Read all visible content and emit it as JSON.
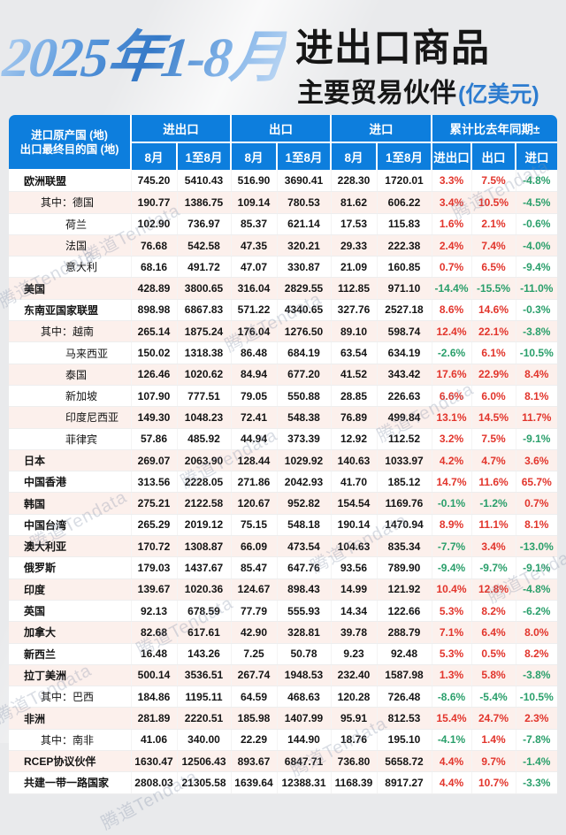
{
  "title": {
    "period": "2025年1-8月",
    "main": "进出口商品",
    "sub": "主要贸易伙伴",
    "unit": "(亿美元)"
  },
  "watermark_text": "腾道Tendata",
  "colors": {
    "header_bg": "#0d7edd",
    "increase_red": "#e2352c",
    "decrease_green": "#2a9f6b",
    "title_blue": "#3579c7",
    "row_alt_bg": "#fcf0ec"
  },
  "table": {
    "label_header_line1": "进口原产国 (地)",
    "label_header_line2": "出口最终目的国 (地)",
    "groups": [
      "进出口",
      "出口",
      "进口",
      "累计比去年同期±"
    ],
    "subheaders": [
      "8月",
      "1至8月",
      "8月",
      "1至8月",
      "8月",
      "1至8月",
      "进出口",
      "出口",
      "进口"
    ],
    "rows": [
      {
        "label": "欧洲联盟",
        "indent": 0,
        "values": [
          "745.20",
          "5410.43",
          "516.90",
          "3690.41",
          "228.30",
          "1720.01"
        ],
        "pcts": [
          "3.3%",
          "7.5%",
          "-4.8%"
        ]
      },
      {
        "label": "其中：德国",
        "indent": 1,
        "values": [
          "190.77",
          "1386.75",
          "109.14",
          "780.53",
          "81.62",
          "606.22"
        ],
        "pcts": [
          "3.4%",
          "10.5%",
          "-4.5%"
        ]
      },
      {
        "label": "荷兰",
        "indent": 2,
        "values": [
          "102.90",
          "736.97",
          "85.37",
          "621.14",
          "17.53",
          "115.83"
        ],
        "pcts": [
          "1.6%",
          "2.1%",
          "-0.6%"
        ]
      },
      {
        "label": "法国",
        "indent": 2,
        "values": [
          "76.68",
          "542.58",
          "47.35",
          "320.21",
          "29.33",
          "222.38"
        ],
        "pcts": [
          "2.4%",
          "7.4%",
          "-4.0%"
        ]
      },
      {
        "label": "意大利",
        "indent": 2,
        "values": [
          "68.16",
          "491.72",
          "47.07",
          "330.87",
          "21.09",
          "160.85"
        ],
        "pcts": [
          "0.7%",
          "6.5%",
          "-9.4%"
        ]
      },
      {
        "label": "美国",
        "indent": 0,
        "values": [
          "428.89",
          "3800.65",
          "316.04",
          "2829.55",
          "112.85",
          "971.10"
        ],
        "pcts": [
          "-14.4%",
          "-15.5%",
          "-11.0%"
        ]
      },
      {
        "label": "东南亚国家联盟",
        "indent": 0,
        "values": [
          "898.98",
          "6867.83",
          "571.22",
          "4340.65",
          "327.76",
          "2527.18"
        ],
        "pcts": [
          "8.6%",
          "14.6%",
          "-0.3%"
        ]
      },
      {
        "label": "其中：越南",
        "indent": 1,
        "values": [
          "265.14",
          "1875.24",
          "176.04",
          "1276.50",
          "89.10",
          "598.74"
        ],
        "pcts": [
          "12.4%",
          "22.1%",
          "-3.8%"
        ]
      },
      {
        "label": "马来西亚",
        "indent": 2,
        "values": [
          "150.02",
          "1318.38",
          "86.48",
          "684.19",
          "63.54",
          "634.19"
        ],
        "pcts": [
          "-2.6%",
          "6.1%",
          "-10.5%"
        ]
      },
      {
        "label": "泰国",
        "indent": 2,
        "values": [
          "126.46",
          "1020.62",
          "84.94",
          "677.20",
          "41.52",
          "343.42"
        ],
        "pcts": [
          "17.6%",
          "22.9%",
          "8.4%"
        ]
      },
      {
        "label": "新加坡",
        "indent": 2,
        "values": [
          "107.90",
          "777.51",
          "79.05",
          "550.88",
          "28.85",
          "226.63"
        ],
        "pcts": [
          "6.6%",
          "6.0%",
          "8.1%"
        ]
      },
      {
        "label": "印度尼西亚",
        "indent": 2,
        "values": [
          "149.30",
          "1048.23",
          "72.41",
          "548.38",
          "76.89",
          "499.84"
        ],
        "pcts": [
          "13.1%",
          "14.5%",
          "11.7%"
        ]
      },
      {
        "label": "菲律宾",
        "indent": 2,
        "values": [
          "57.86",
          "485.92",
          "44.94",
          "373.39",
          "12.92",
          "112.52"
        ],
        "pcts": [
          "3.2%",
          "7.5%",
          "-9.1%"
        ]
      },
      {
        "label": "日本",
        "indent": 0,
        "values": [
          "269.07",
          "2063.90",
          "128.44",
          "1029.92",
          "140.63",
          "1033.97"
        ],
        "pcts": [
          "4.2%",
          "4.7%",
          "3.6%"
        ]
      },
      {
        "label": "中国香港",
        "indent": 0,
        "values": [
          "313.56",
          "2228.05",
          "271.86",
          "2042.93",
          "41.70",
          "185.12"
        ],
        "pcts": [
          "14.7%",
          "11.6%",
          "65.7%"
        ]
      },
      {
        "label": "韩国",
        "indent": 0,
        "values": [
          "275.21",
          "2122.58",
          "120.67",
          "952.82",
          "154.54",
          "1169.76"
        ],
        "pcts": [
          "-0.1%",
          "-1.2%",
          "0.7%"
        ]
      },
      {
        "label": "中国台湾",
        "indent": 0,
        "values": [
          "265.29",
          "2019.12",
          "75.15",
          "548.18",
          "190.14",
          "1470.94"
        ],
        "pcts": [
          "8.9%",
          "11.1%",
          "8.1%"
        ]
      },
      {
        "label": "澳大利亚",
        "indent": 0,
        "values": [
          "170.72",
          "1308.87",
          "66.09",
          "473.54",
          "104.63",
          "835.34"
        ],
        "pcts": [
          "-7.7%",
          "3.4%",
          "-13.0%"
        ]
      },
      {
        "label": "俄罗斯",
        "indent": 0,
        "values": [
          "179.03",
          "1437.67",
          "85.47",
          "647.76",
          "93.56",
          "789.90"
        ],
        "pcts": [
          "-9.4%",
          "-9.7%",
          "-9.1%"
        ]
      },
      {
        "label": "印度",
        "indent": 0,
        "values": [
          "139.67",
          "1020.36",
          "124.67",
          "898.43",
          "14.99",
          "121.92"
        ],
        "pcts": [
          "10.4%",
          "12.8%",
          "-4.8%"
        ]
      },
      {
        "label": "英国",
        "indent": 0,
        "values": [
          "92.13",
          "678.59",
          "77.79",
          "555.93",
          "14.34",
          "122.66"
        ],
        "pcts": [
          "5.3%",
          "8.2%",
          "-6.2%"
        ]
      },
      {
        "label": "加拿大",
        "indent": 0,
        "values": [
          "82.68",
          "617.61",
          "42.90",
          "328.81",
          "39.78",
          "288.79"
        ],
        "pcts": [
          "7.1%",
          "6.4%",
          "8.0%"
        ]
      },
      {
        "label": "新西兰",
        "indent": 0,
        "values": [
          "16.48",
          "143.26",
          "7.25",
          "50.78",
          "9.23",
          "92.48"
        ],
        "pcts": [
          "5.3%",
          "0.5%",
          "8.2%"
        ]
      },
      {
        "label": "拉丁美洲",
        "indent": 0,
        "values": [
          "500.14",
          "3536.51",
          "267.74",
          "1948.53",
          "232.40",
          "1587.98"
        ],
        "pcts": [
          "1.3%",
          "5.8%",
          "-3.8%"
        ]
      },
      {
        "label": "其中：巴西",
        "indent": 1,
        "values": [
          "184.86",
          "1195.11",
          "64.59",
          "468.63",
          "120.28",
          "726.48"
        ],
        "pcts": [
          "-8.6%",
          "-5.4%",
          "-10.5%"
        ]
      },
      {
        "label": "非洲",
        "indent": 0,
        "values": [
          "281.89",
          "2220.51",
          "185.98",
          "1407.99",
          "95.91",
          "812.53"
        ],
        "pcts": [
          "15.4%",
          "24.7%",
          "2.3%"
        ]
      },
      {
        "label": "其中：南非",
        "indent": 1,
        "values": [
          "41.06",
          "340.00",
          "22.29",
          "144.90",
          "18.76",
          "195.10"
        ],
        "pcts": [
          "-4.1%",
          "1.4%",
          "-7.8%"
        ]
      },
      {
        "label": "RCEP协议伙伴",
        "indent": 0,
        "values": [
          "1630.47",
          "12506.43",
          "893.67",
          "6847.71",
          "736.80",
          "5658.72"
        ],
        "pcts": [
          "4.4%",
          "9.7%",
          "-1.4%"
        ]
      },
      {
        "label": "共建一带一路国家",
        "indent": 0,
        "values": [
          "2808.03",
          "21305.58",
          "1639.64",
          "12388.31",
          "1168.39",
          "8917.27"
        ],
        "pcts": [
          "4.4%",
          "10.7%",
          "-3.3%"
        ]
      }
    ]
  }
}
